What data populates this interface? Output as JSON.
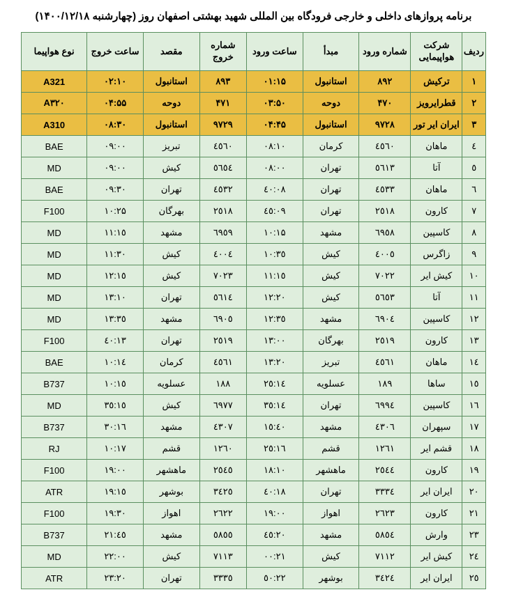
{
  "title": "برنامه پروازهای داخلی و خارجی فرودگاه بین المللی شهید بهشتی اصفهان روز (چهارشنبه ۱۴۰۰/۱۲/۱۸)",
  "columns": [
    "ردیف",
    "شرکت هواپیمایی",
    "شماره ورود",
    "مبدأ",
    "ساعت ورود",
    "شماره خروج",
    "مقصد",
    "ساعت خروج",
    "نوع هواپیما"
  ],
  "rows": [
    {
      "hl": true,
      "c": [
        "۱",
        "ترکیش",
        "۸۹۲",
        "استانبول",
        "۰۱:۱۵",
        "۸۹۳",
        "استانبول",
        "۰۲:۱۰",
        "A321"
      ]
    },
    {
      "hl": true,
      "c": [
        "۲",
        "قطرایرویز",
        "۴۷۰",
        "دوحه",
        "۰۳:۵۰",
        "۴۷۱",
        "دوحه",
        "۰۴:۵۵",
        "A۳۲۰"
      ]
    },
    {
      "hl": true,
      "c": [
        "۳",
        "ایران ایر تور",
        "۹۷۲۸",
        "استانبول",
        "۰۴:۴۵",
        "۹۷۲۹",
        "استانبول",
        "۰۸:۳۰",
        "A310"
      ]
    },
    {
      "hl": false,
      "c": [
        "٤",
        "ماهان",
        "٤٥٦٠",
        "کرمان",
        "۰۸:۱۰",
        "٤٥٦٠",
        "تبریز",
        "۰۹:۰۰",
        "BAE"
      ]
    },
    {
      "hl": false,
      "c": [
        "٥",
        "آتا",
        "٥٦١٣",
        "تهران",
        "۰۸:۰۰",
        "٥٦٥٤",
        "کیش",
        "۰۹:۰۰",
        "MD"
      ]
    },
    {
      "hl": false,
      "c": [
        "٦",
        "ماهان",
        "٤٥٣٣",
        "تهران",
        "۰۸:٤۰",
        "٤٥٣٢",
        "تهران",
        "۰۹:۳۰",
        "BAE"
      ]
    },
    {
      "hl": false,
      "c": [
        "٧",
        "کارون",
        "٢٥١٨",
        "تهران",
        "۰۹:٤٥",
        "٢٥١٨",
        "بهرگان",
        "۱۰:۲۵",
        "F100"
      ]
    },
    {
      "hl": false,
      "c": [
        "٨",
        "کاسپین",
        "٦٩٥٨",
        "مشهد",
        "۱۰:۱۵",
        "٦٩٥٩",
        "مشهد",
        "۱۱:۱٥",
        "MD"
      ]
    },
    {
      "hl": false,
      "c": [
        "٩",
        "زاگرس",
        "٤٠٠٥",
        "کیش",
        "۱۰:۳٥",
        "٤٠٠٤",
        "کیش",
        "۱۱:۳۰",
        "MD"
      ]
    },
    {
      "hl": false,
      "c": [
        "۱۰",
        "کیش ایر",
        "٧٠٢٢",
        "کیش",
        "۱۱:۱٥",
        "٧٠٢٣",
        "کیش",
        "۱۲:۱٥",
        "MD"
      ]
    },
    {
      "hl": false,
      "c": [
        "۱۱",
        "آتا",
        "٥٦٥٣",
        "کیش",
        "۱۲:۲۰",
        "٥٦١٤",
        "تهران",
        "۱۳:۱۰",
        "MD"
      ]
    },
    {
      "hl": false,
      "c": [
        "۱۲",
        "کاسپین",
        "٦٩٠٤",
        "مشهد",
        "۱۲:۳٥",
        "٦٩٠٥",
        "مشهد",
        "۱۳:۳٥",
        "MD"
      ]
    },
    {
      "hl": false,
      "c": [
        "۱۳",
        "کارون",
        "٢٥١٩",
        "بهرگان",
        "۱۳:۰۰",
        "٢٥١٩",
        "تهران",
        "۱۳:٤۰",
        "F100"
      ]
    },
    {
      "hl": false,
      "c": [
        "۱٤",
        "ماهان",
        "٤٥٦١",
        "تبریز",
        "۱۳:۲۰",
        "٤٥٦١",
        "کرمان",
        "۱٤:۱۰",
        "BAE"
      ]
    },
    {
      "hl": false,
      "c": [
        "۱٥",
        "ساها",
        "١٨٩",
        "عسلویه",
        "۱٤:۲٥",
        "١٨٨",
        "عسلویه",
        "۱٥:۱۰",
        "B737"
      ]
    },
    {
      "hl": false,
      "c": [
        "۱٦",
        "کاسپین",
        "٦٩٩٤",
        "تهران",
        "۱٤:۳٥",
        "٦٩٧٧",
        "کیش",
        "۱٥:۳٥",
        "MD"
      ]
    },
    {
      "hl": false,
      "c": [
        "۱٧",
        "سپهران",
        "٤٣٠٦",
        "مشهد",
        "۱٥:٤۰",
        "٤٣٠٧",
        "مشهد",
        "۱٦:۳۰",
        "B737"
      ]
    },
    {
      "hl": false,
      "c": [
        "۱۸",
        "قشم ایر",
        "١٢٦١",
        "قشم",
        "۱٦:۲٥",
        "١٢٦٠",
        "قشم",
        "۱٧:۱۰",
        "RJ"
      ]
    },
    {
      "hl": false,
      "c": [
        "۱۹",
        "کارون",
        "٢٥٤٤",
        "ماهشهر",
        "۱۸:۱۰",
        "٢٥٤٥",
        "ماهشهر",
        "۱۹:۰۰",
        "F100"
      ]
    },
    {
      "hl": false,
      "c": [
        "۲۰",
        "ایران ایر",
        "٣٣٣٤",
        "تهران",
        "۱۸:٤۰",
        "٣٤٢٥",
        "بوشهر",
        "۱۹:۱٥",
        "ATR"
      ]
    },
    {
      "hl": false,
      "c": [
        "۲۱",
        "کارون",
        "٢٦٢٣",
        "اهواز",
        "۱۹:۰۰",
        "٢٦٢٢",
        "اهواز",
        "۱۹:۳۰",
        "F100"
      ]
    },
    {
      "hl": false,
      "c": [
        "۲۳",
        "وارش",
        "٥٨٥٤",
        "مشهد",
        "۲۰:٤٥",
        "٥٨٥٥",
        "مشهد",
        "۲١:٤٥",
        "B737"
      ]
    },
    {
      "hl": false,
      "c": [
        "۲٤",
        "کیش ایر",
        "٧١١٢",
        "کیش",
        "۲١:۰۰",
        "٧١١٣",
        "کیش",
        "۲۲:۰۰",
        "MD"
      ]
    },
    {
      "hl": false,
      "c": [
        "۲٥",
        "ایران ایر",
        "٣٤٢٤",
        "بوشهر",
        "۲۲:٥۰",
        "٣٣٣٥",
        "تهران",
        "۲۳:۲۰",
        "ATR"
      ]
    }
  ]
}
